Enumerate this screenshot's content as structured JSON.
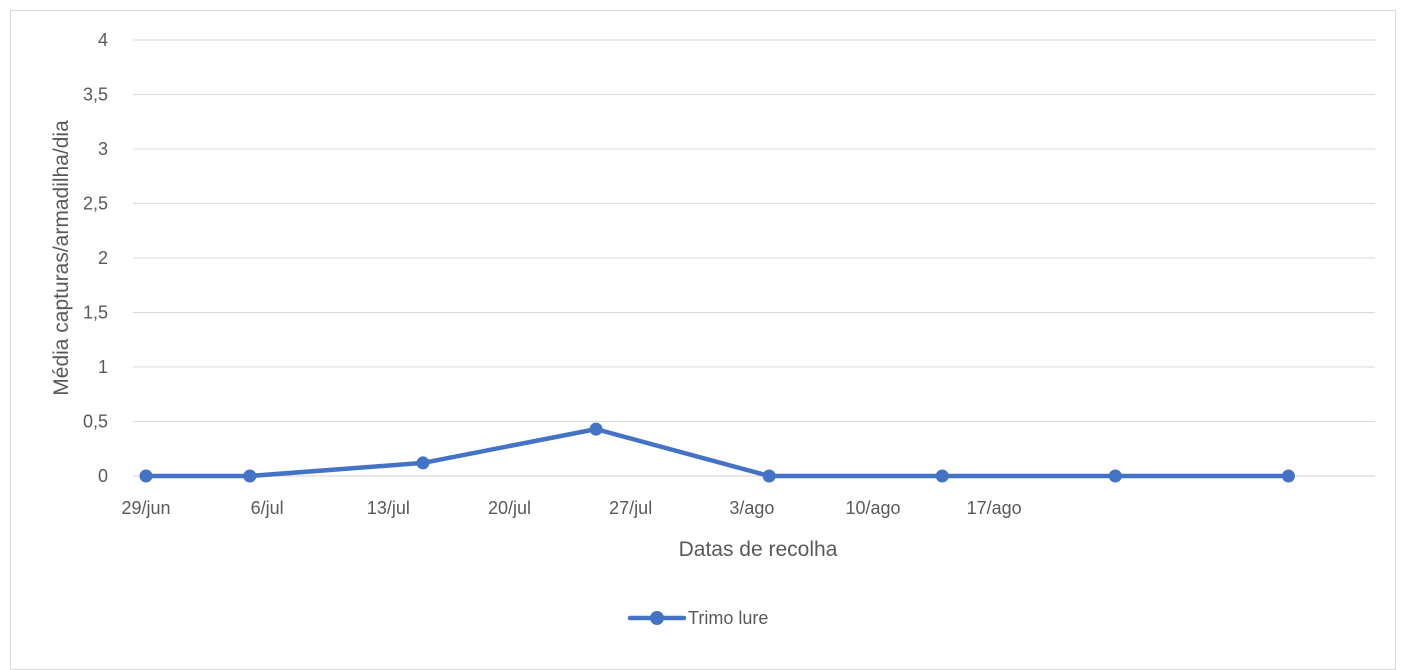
{
  "chart_data": {
    "type": "line",
    "title": "",
    "xlabel": "Datas de recolha",
    "ylabel": "Média capturas/armadilha/dia",
    "categories": [
      "29/jun",
      "6/jul",
      "13/jul",
      "20/jul",
      "27/jul",
      "3/ago",
      "10/ago",
      "17/ago"
    ],
    "x": [
      "2023-06-29",
      "2023-07-06",
      "2023-07-13",
      "2023-07-20",
      "2023-07-27",
      "2023-08-03",
      "2023-08-10",
      "2023-08-17"
    ],
    "series": [
      {
        "name": "Trimo lure",
        "color": "#4472c4",
        "x": [
          "2023-06-29",
          "2023-07-05",
          "2023-07-15",
          "2023-07-25",
          "2023-08-04",
          "2023-08-14",
          "2023-08-24",
          "2023-09-03"
        ],
        "values": [
          0,
          0,
          0.12,
          0.43,
          0,
          0,
          0,
          0
        ]
      }
    ],
    "xlim": [
      "2023-06-29",
      "2023-09-08"
    ],
    "ylim": [
      0,
      4
    ],
    "yticks": [
      "0",
      "0,5",
      "1",
      "1,5",
      "2",
      "2,5",
      "3",
      "3,5",
      "4"
    ],
    "grid": true,
    "legend": "bottom"
  }
}
